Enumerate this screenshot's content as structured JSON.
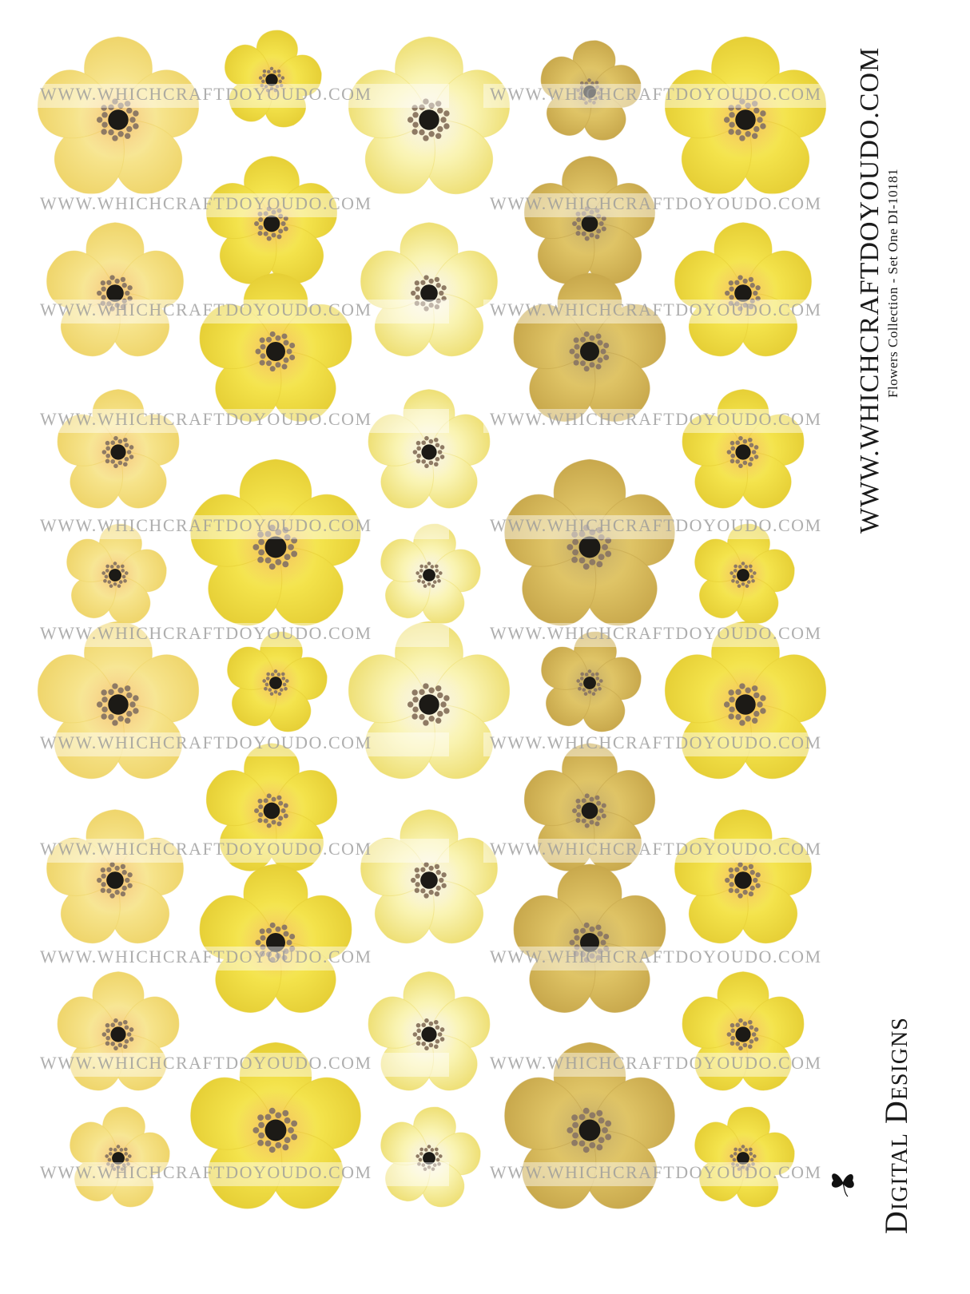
{
  "watermark": {
    "text": "WWW.WHICHCRAFTDOYOUDO.COM"
  },
  "sidebar": {
    "site_url": "WWW.WHICHCRAFTDOYOUDO.COM",
    "collection_title": "Flowers Collection -  Set One   DI-10181",
    "brand_name": "Digital Designs",
    "brand_icon": "butterfly-icon"
  },
  "palettes": {
    "pale": {
      "petal_light": "#fdf5c8",
      "petal_mid": "#f6e38a",
      "petal_edge": "#efd56b",
      "glow": "#f2b85a"
    },
    "lemon": {
      "petal_light": "#fbf27a",
      "petal_mid": "#f3e24a",
      "petal_edge": "#e6cf36",
      "glow": "#f1b24e"
    },
    "cream": {
      "petal_light": "#fffef0",
      "petal_mid": "#f9f3b0",
      "petal_edge": "#eedf75",
      "glow": "#f3ecd6"
    },
    "gold": {
      "petal_light": "#f0da7e",
      "petal_mid": "#dcc062",
      "petal_edge": "#c8a84c",
      "glow": "#b79c5a"
    },
    "stamen": "#8e7a64",
    "center": "#1c1a16"
  }
}
